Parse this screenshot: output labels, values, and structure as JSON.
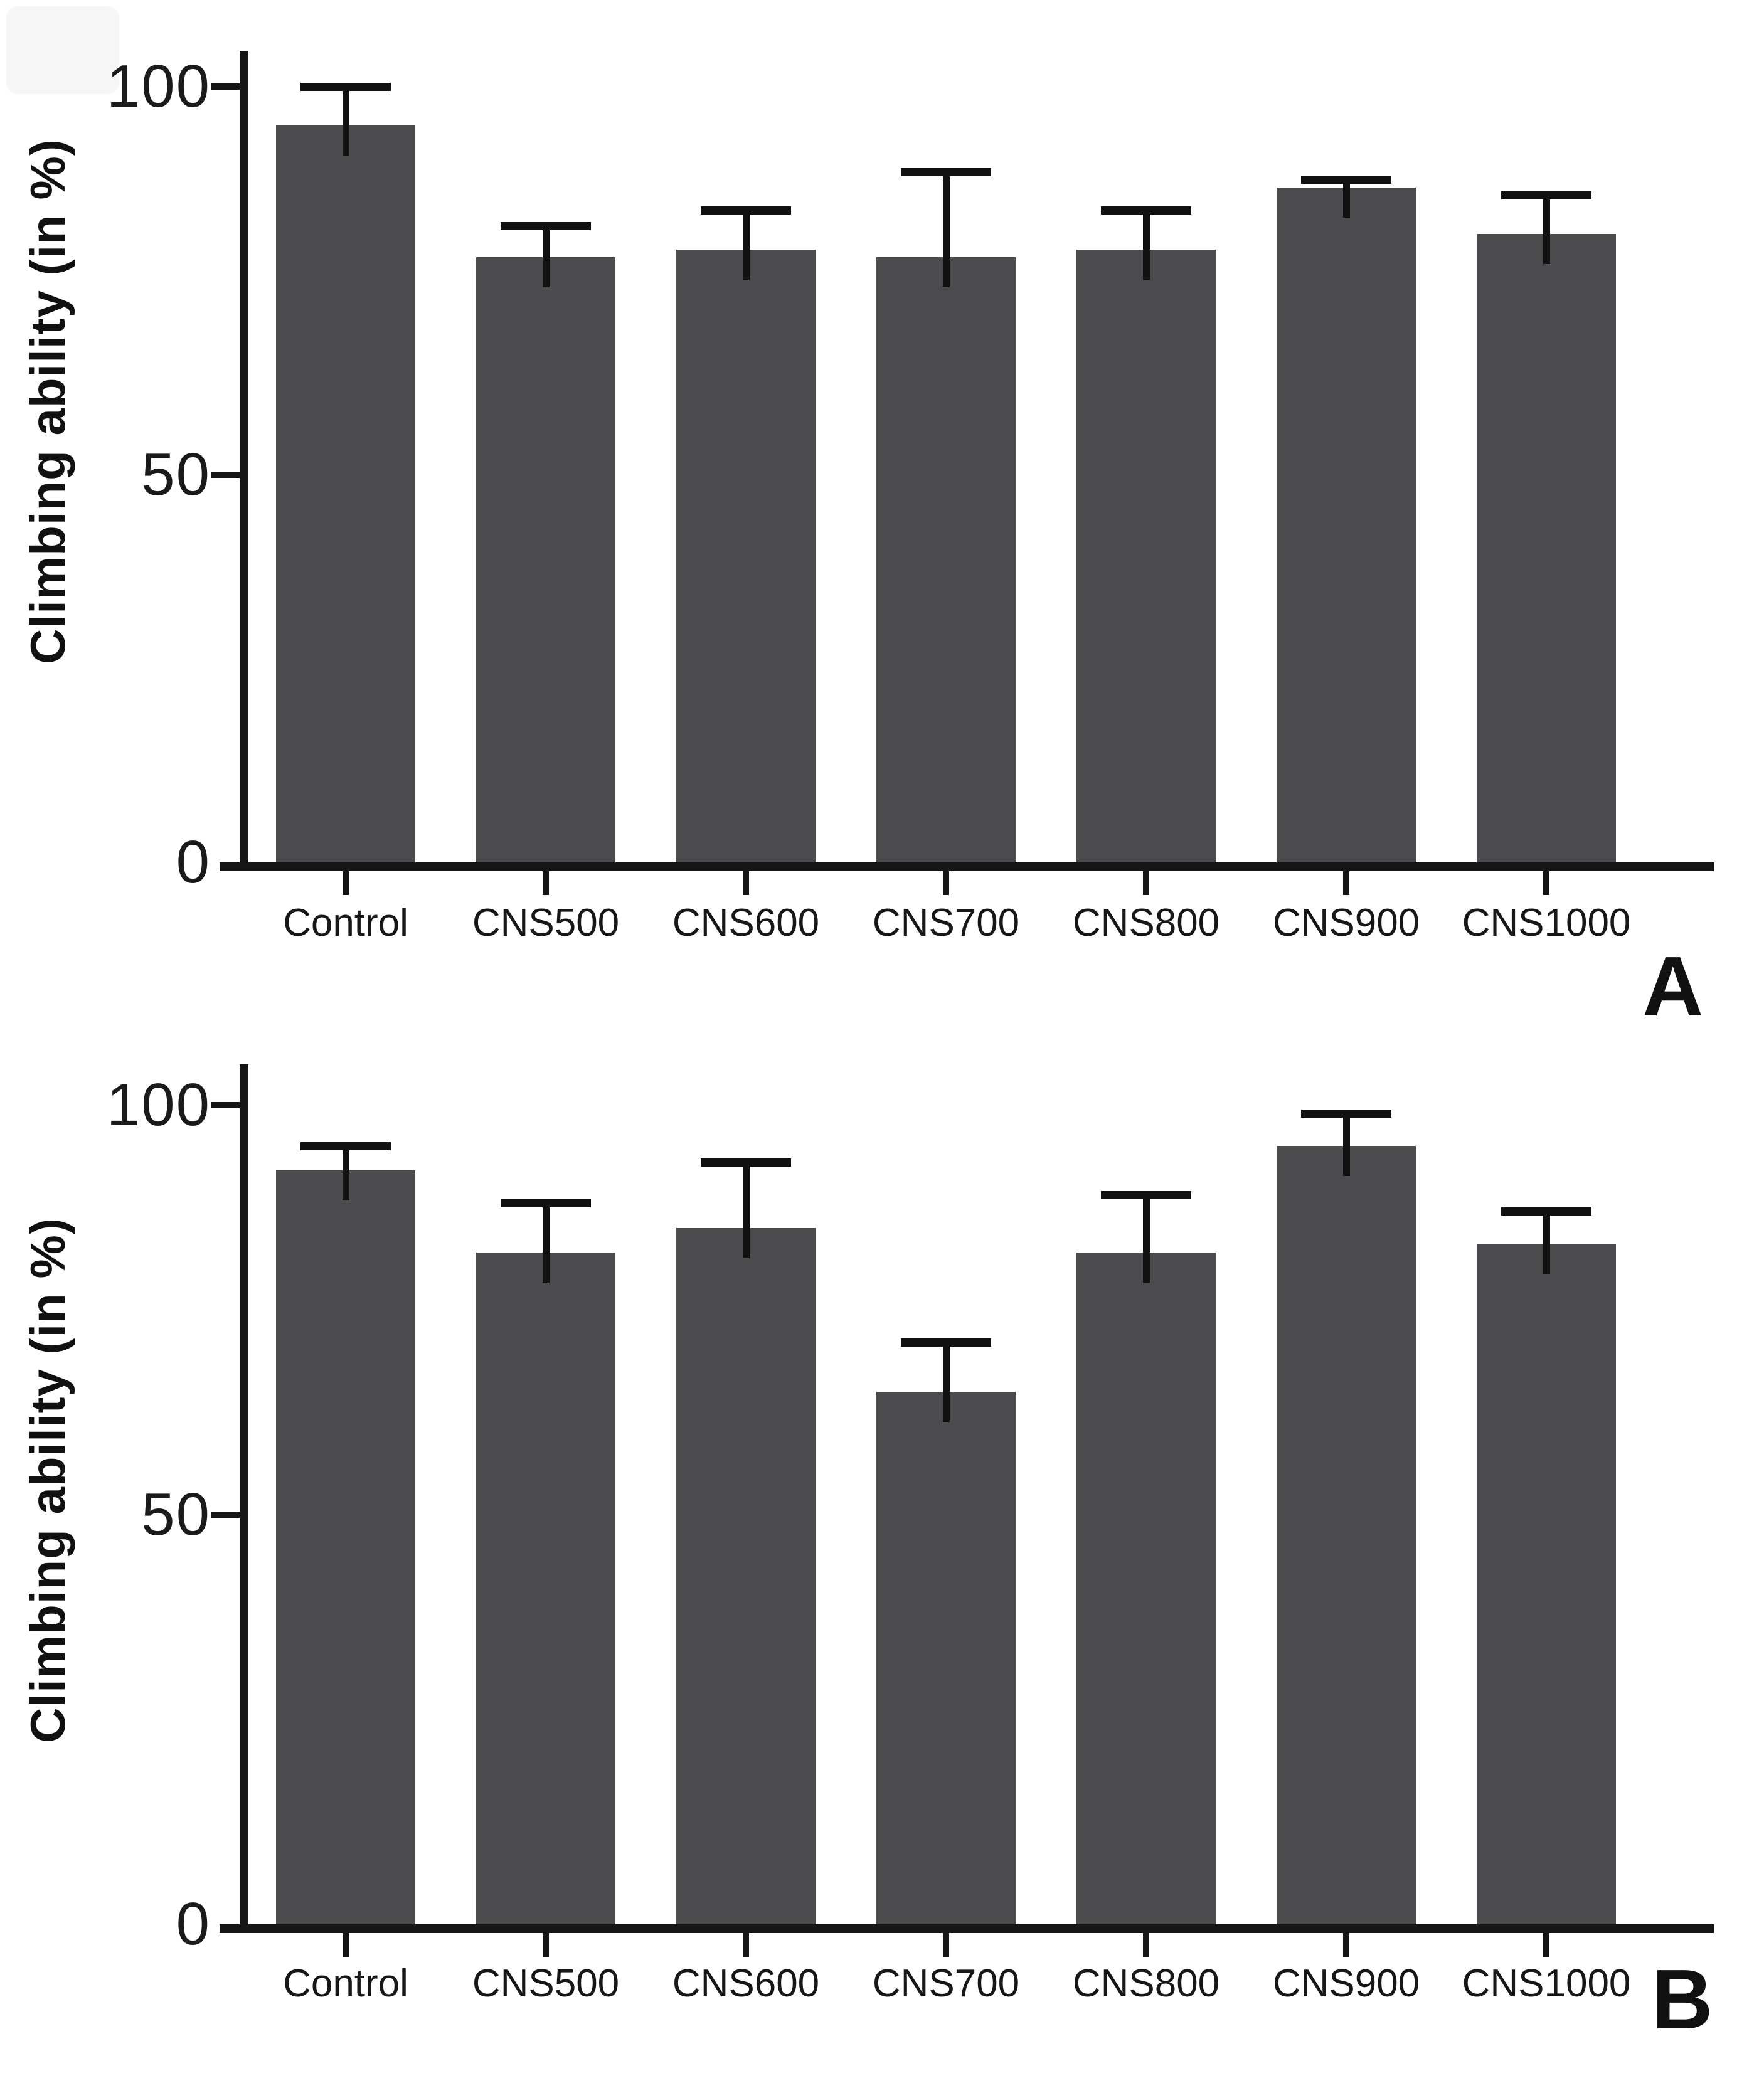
{
  "figure_title": "",
  "colors": {
    "bar": "#4b4b4d",
    "axis": "#151515",
    "text": "#1a1a1a",
    "background": "#ffffff"
  },
  "chart_data": [
    {
      "type": "bar",
      "panel_label": "A",
      "title": "",
      "xlabel": "",
      "ylabel": "Climbing ability (in %)",
      "categories": [
        "Control",
        "CNS500",
        "CNS600",
        "CNS700",
        "CNS800",
        "CNS900",
        "CNS1000"
      ],
      "values": [
        95,
        78,
        79,
        78,
        79,
        87,
        81
      ],
      "errors_plus": [
        5,
        4,
        5,
        11,
        5,
        1,
        5
      ],
      "yticks": [
        0,
        50,
        100
      ],
      "ytick_labels": [
        "0",
        "50",
        "100"
      ],
      "ylim": [
        0,
        105
      ],
      "grid": "off",
      "legend": "none",
      "bar_color": "#4b4b4d",
      "error_bar_style": "upper caps only"
    },
    {
      "type": "bar",
      "panel_label": "B",
      "title": "",
      "xlabel": "",
      "ylabel": "Climbing ability (in %)",
      "categories": [
        "Control",
        "CNS500",
        "CNS600",
        "CNS700",
        "CNS800",
        "CNS900",
        "CNS1000"
      ],
      "values": [
        92,
        82,
        85,
        65,
        82,
        95,
        83
      ],
      "errors_plus": [
        3,
        6,
        8,
        6,
        7,
        4,
        4
      ],
      "yticks": [
        0,
        50,
        100
      ],
      "ytick_labels": [
        "0",
        "50",
        "100"
      ],
      "ylim": [
        0,
        105
      ],
      "grid": "off",
      "legend": "none",
      "bar_color": "#4b4b4d",
      "error_bar_style": "upper caps only"
    }
  ]
}
